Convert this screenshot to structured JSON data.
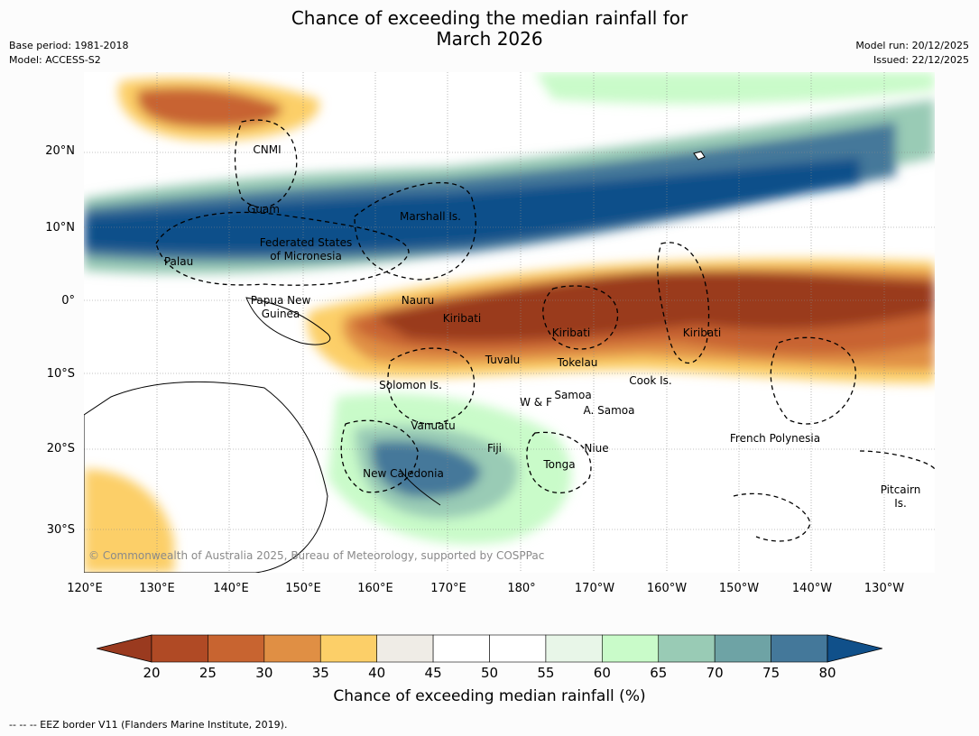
{
  "title": {
    "line1": "Chance of exceeding the median rainfall for",
    "line2": "March 2026"
  },
  "meta": {
    "base_period": "Base period: 1981-2018",
    "model": "Model: ACCESS-S2",
    "model_run": "Model run: 20/12/2025",
    "issued": "Issued: 22/12/2025"
  },
  "map": {
    "lat_labels": [
      "20°N",
      "10°N",
      "0°",
      "10°S",
      "20°S",
      "30°S"
    ],
    "lon_labels": [
      "120°E",
      "130°E",
      "140°E",
      "150°E",
      "160°E",
      "170°E",
      "180°",
      "170°W",
      "160°W",
      "150°W",
      "140°W",
      "130°W"
    ],
    "places": [
      "CNMI",
      "Guam",
      "Marshall Is.",
      "Federated States",
      "of Micronesia",
      "Palau",
      "Papua New",
      "Guinea",
      "Nauru",
      "Kiribati",
      "Kiribati",
      "Kiribati",
      "Tuvalu",
      "Tokelau",
      "Cook Is.",
      "Solomon Is.",
      "W & F",
      "Samoa",
      "A. Samoa",
      "Vanuatu",
      "Fiji",
      "Niue",
      "French Polynesia",
      "Tonga",
      "New Caledonia",
      "Pitcairn",
      "Is."
    ],
    "copyright": "© Commonwealth of Australia 2025, Bureau of Meteorology, supported by COSPPac"
  },
  "colorbar": {
    "ticks": [
      "20",
      "25",
      "30",
      "35",
      "40",
      "45",
      "50",
      "55",
      "60",
      "65",
      "70",
      "75",
      "80"
    ],
    "colors": [
      "#9a3a1f",
      "#b04a25",
      "#c86430",
      "#e08f44",
      "#fccf68",
      "#efece6",
      "#ffffff",
      "#ffffff",
      "#e8f6e8",
      "#c9fbc9",
      "#99cbb5",
      "#6ea3a5",
      "#44789a",
      "#10508a"
    ],
    "title": "Chance of exceeding median rainfall (%)"
  },
  "footer": {
    "eez_note": "-- -- -- EEZ border V11 (Flanders Marine Institute, 2019)."
  }
}
